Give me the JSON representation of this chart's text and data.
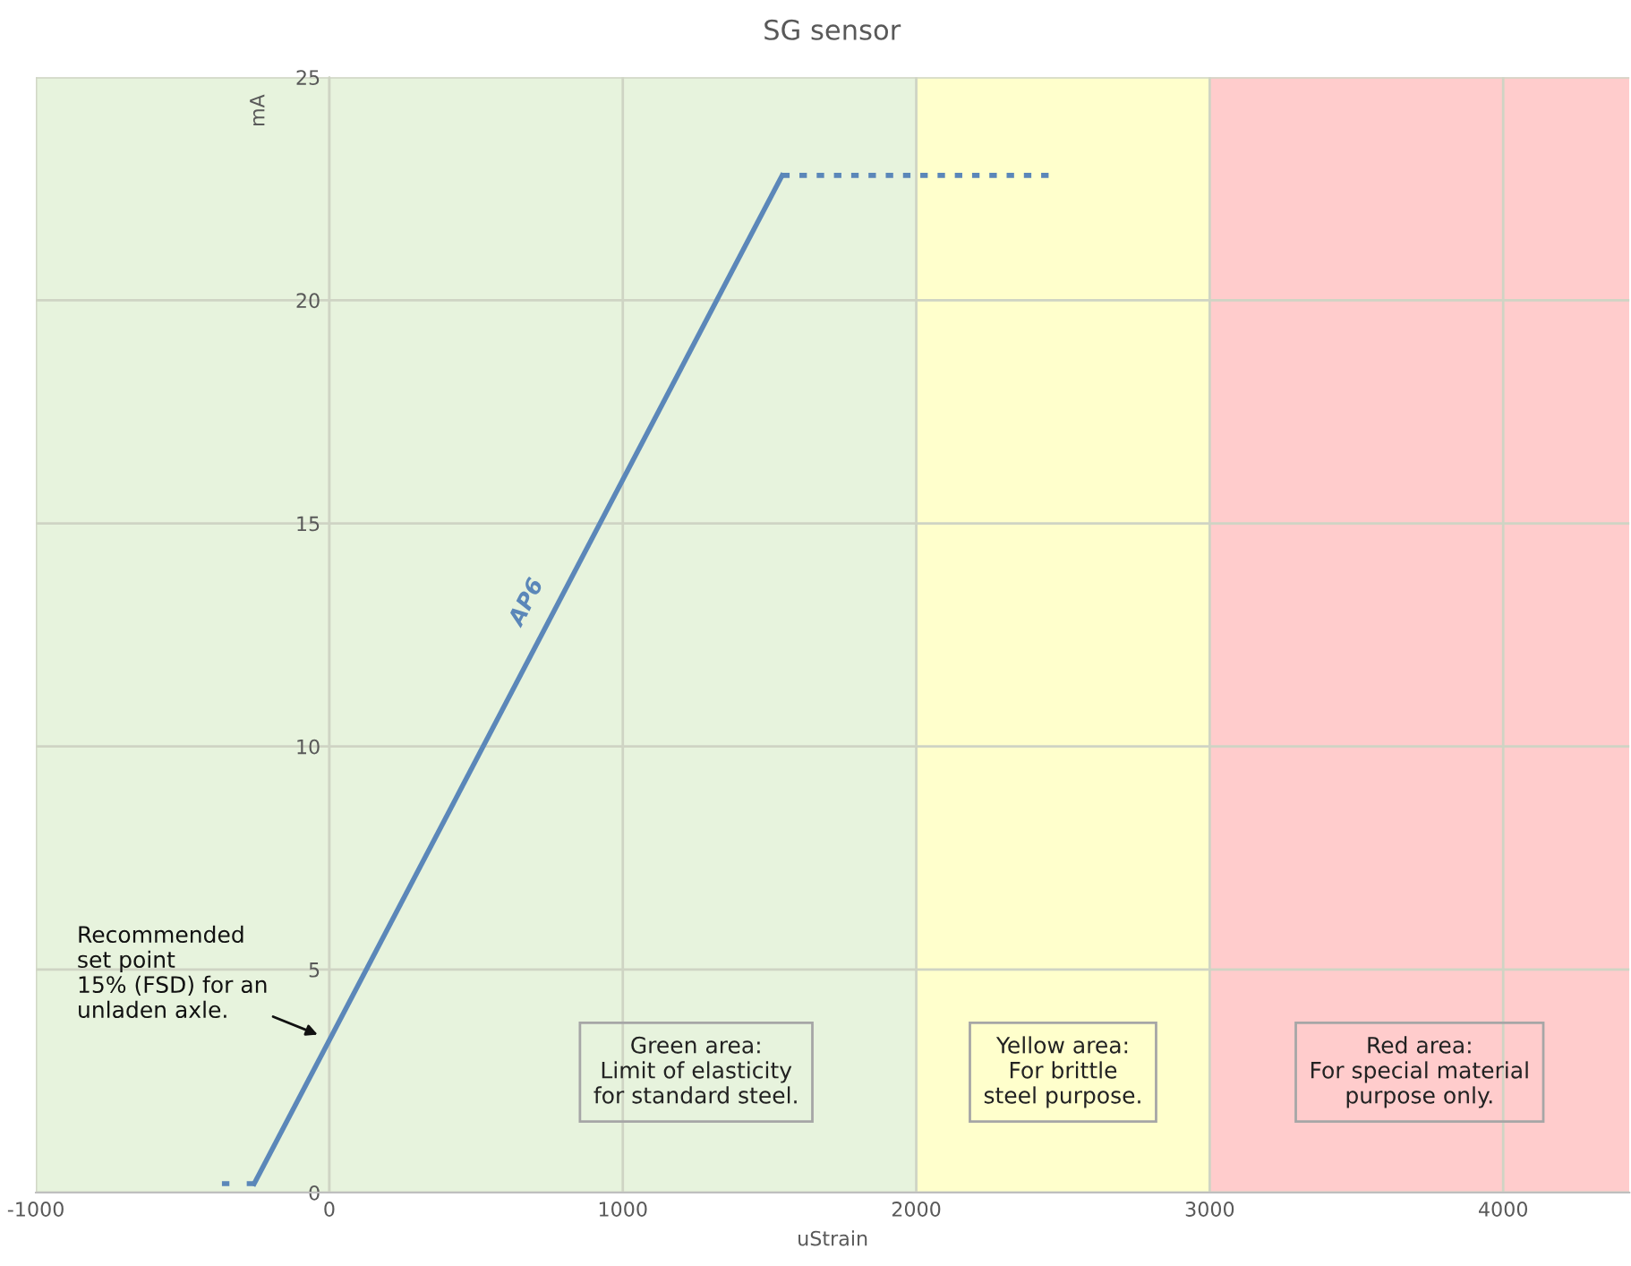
{
  "chart_data": {
    "type": "line",
    "title": "SG sensor",
    "xlabel": "uStrain",
    "ylabel": "mA",
    "xlim": [
      -1000,
      4430
    ],
    "ylim": [
      0,
      25
    ],
    "xticks": [
      -1000,
      0,
      1000,
      2000,
      3000,
      4000
    ],
    "yticks": [
      0,
      5,
      10,
      15,
      20,
      25
    ],
    "grid": true,
    "legend": false,
    "series": [
      {
        "color": "#5b87b9",
        "x": [
          -366,
          -256
        ],
        "values": [
          0.2,
          0.2
        ],
        "line_style": "dashed"
      },
      {
        "name": "AP6",
        "color": "#5b87b9",
        "x": [
          -256,
          1543
        ],
        "values": [
          0.2,
          22.8
        ],
        "line_style": "solid"
      },
      {
        "color": "#5b87b9",
        "x": [
          1543,
          2451
        ],
        "values": [
          22.8,
          22.8
        ],
        "line_style": "dashed"
      }
    ],
    "bands": [
      {
        "axis": "x",
        "from": -1000,
        "to": 2000,
        "color": "#e7f3dd",
        "label": "Green area:\nLimit of elasticity\nfor standard steel."
      },
      {
        "axis": "x",
        "from": 2000,
        "to": 3000,
        "color": "#ffffcc",
        "label": "Yellow area:\nFor brittle\nsteel purpose."
      },
      {
        "axis": "x",
        "from": 3000,
        "to": 4430,
        "color": "#ffcccc",
        "label": "Red area:\nFor special material\npurpose only."
      }
    ],
    "annotations": [
      {
        "text": "Recommended\nset point\n15% (FSD) for an\nunladen axle.",
        "x": -24,
        "y": 3.5
      }
    ]
  }
}
